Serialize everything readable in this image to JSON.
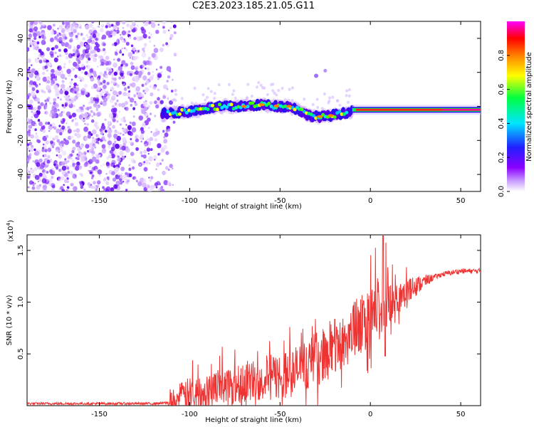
{
  "title": "C2E3.2023.185.21.05.G11",
  "chart_data": [
    {
      "type": "heatmap",
      "xlabel": "Height of straight line (km)",
      "ylabel": "Frequency (Hz)",
      "xlim": [
        -190,
        61
      ],
      "ylim": [
        -50,
        50
      ],
      "xticks": [
        -150,
        -100,
        -50,
        0,
        50
      ],
      "yticks": [
        -40,
        -20,
        0,
        20,
        40
      ],
      "colorbar": {
        "label": "Normalized spectral amplitude",
        "range": [
          0,
          1
        ],
        "ticks": [
          "0.0",
          "0.2",
          "0.4",
          "0.6",
          "0.8"
        ],
        "colormap": [
          "#ffffff",
          "#8b00ff",
          "#2020ff",
          "#00e5ff",
          "#00ff40",
          "#ffff00",
          "#ff8000",
          "#ff0000",
          "#ff00ff"
        ]
      },
      "ridge": {
        "x": [
          -115,
          -110,
          -100,
          -90,
          -80,
          -70,
          -60,
          -50,
          -45,
          -40,
          -35,
          -30,
          -25,
          -20,
          -15,
          -10,
          -5,
          0,
          10,
          20,
          30,
          40,
          50,
          60
        ],
        "y": [
          -4,
          -4,
          -3,
          -1,
          0,
          0,
          1,
          0,
          0,
          -2,
          -5,
          -6,
          -6,
          -5,
          -4,
          -3,
          -2,
          -2,
          -2,
          -2,
          -2,
          -2,
          -2,
          -2
        ]
      },
      "noise_region_x": [
        -190,
        -112
      ]
    },
    {
      "type": "line",
      "xlabel": "Height of straight line (km)",
      "ylabel": "SNR (10 * v/v)",
      "yscale_label": "(x10",
      "yscale_exp": "4",
      "yscale_close": ")",
      "xlim": [
        -190,
        61
      ],
      "ylim": [
        0,
        1.65
      ],
      "xticks": [
        -150,
        -100,
        -50,
        0,
        50
      ],
      "yticks": [
        0.5,
        1.0,
        1.5
      ],
      "ytick_labels": [
        "0.5",
        "1.0",
        "1.5"
      ],
      "series": [
        {
          "color": "#ee3333",
          "trend_x": [
            -190,
            -120,
            -110,
            -100,
            -80,
            -60,
            -45,
            -35,
            -25,
            -15,
            -10,
            -5,
            0,
            5,
            10,
            15,
            20,
            25,
            30,
            35,
            40,
            50,
            61
          ],
          "trend_y": [
            0.02,
            0.02,
            0.03,
            0.12,
            0.2,
            0.26,
            0.3,
            0.4,
            0.5,
            0.62,
            0.72,
            0.78,
            0.85,
            0.92,
            1.0,
            1.05,
            1.1,
            1.15,
            1.2,
            1.24,
            1.27,
            1.3,
            1.3
          ]
        }
      ]
    }
  ]
}
